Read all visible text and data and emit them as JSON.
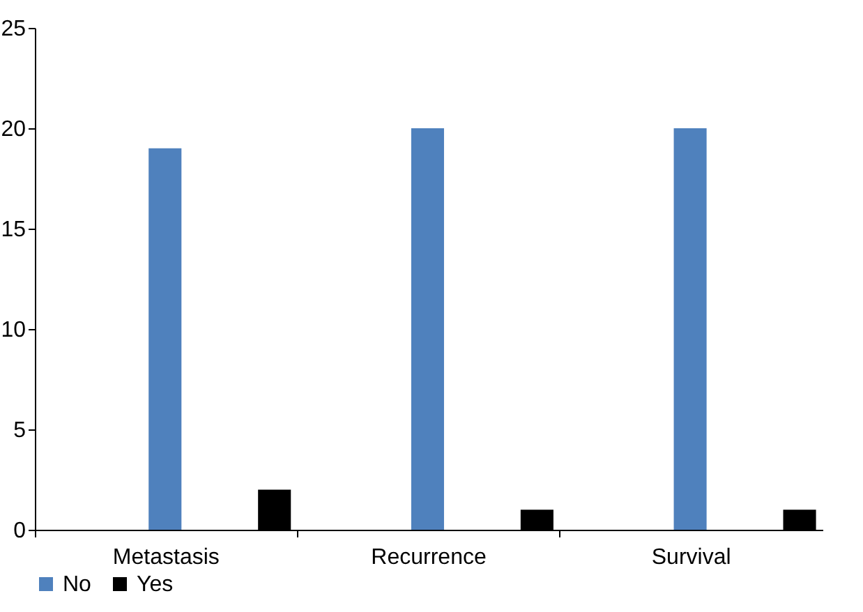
{
  "chart_data": {
    "type": "bar",
    "categories": [
      "Metastasis",
      "Recurrence",
      "Survival"
    ],
    "series": [
      {
        "name": "No",
        "color": "#4f81bd",
        "values": [
          19,
          20,
          20
        ]
      },
      {
        "name": "Yes",
        "color": "#000000",
        "values": [
          2,
          1,
          1
        ]
      }
    ],
    "ylim": [
      0,
      25
    ],
    "yticks": [
      0,
      5,
      10,
      15,
      20,
      25
    ],
    "grid": false,
    "legend": "bottom left"
  }
}
